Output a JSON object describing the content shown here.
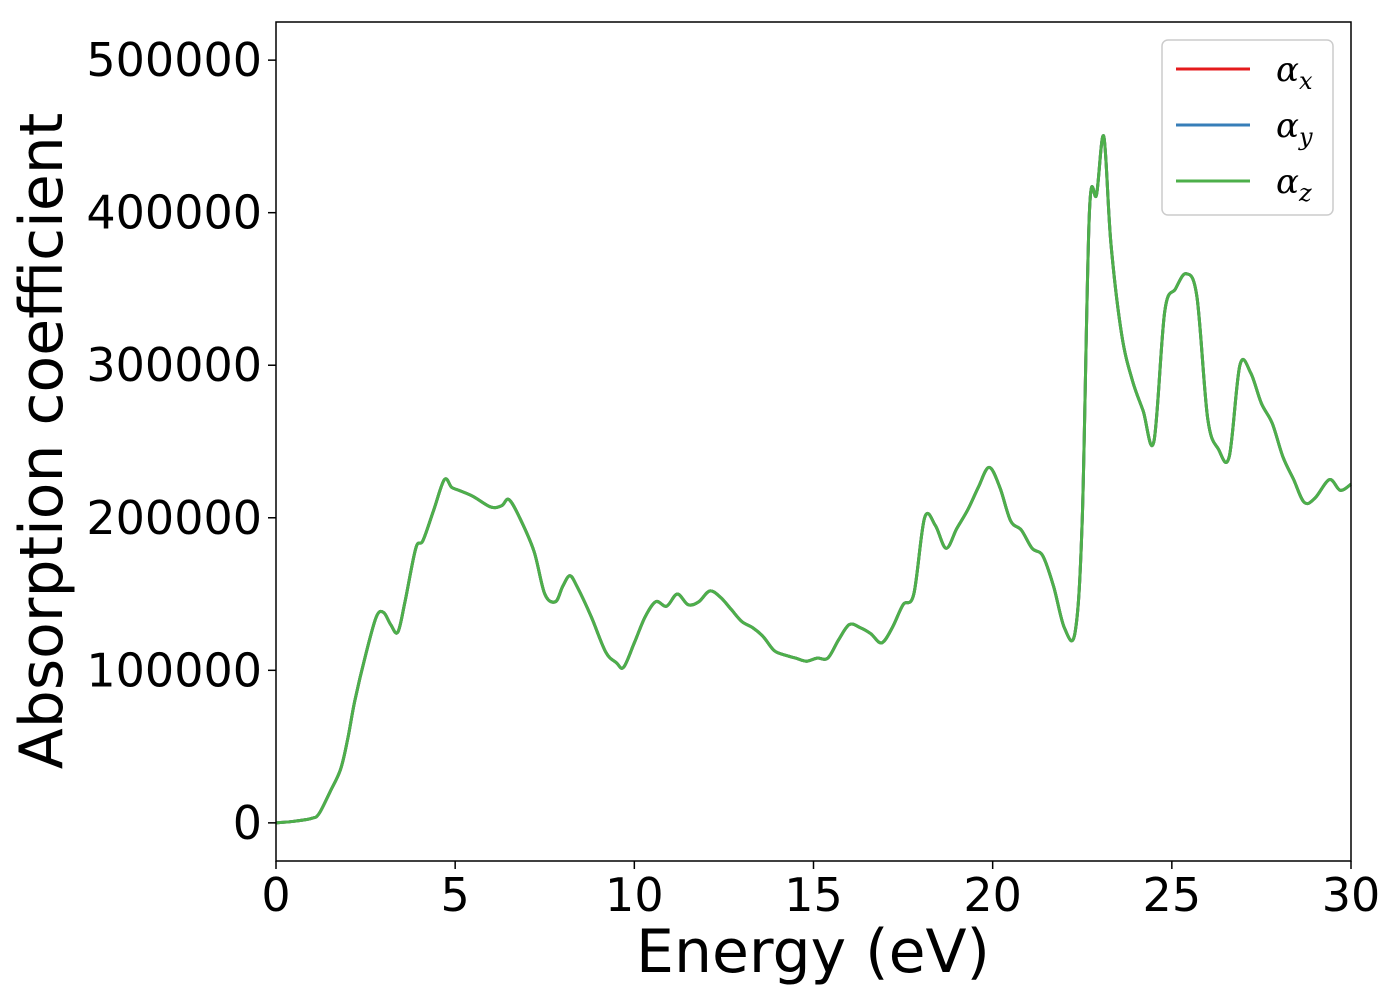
{
  "chart_data": {
    "type": "line",
    "title": "",
    "xlabel": "Energy (eV)",
    "ylabel": "Absorption coefficient",
    "xlim": [
      0,
      30
    ],
    "ylim": [
      -25000,
      525000
    ],
    "xticks": [
      0,
      5,
      10,
      15,
      20,
      25,
      30
    ],
    "yticks": [
      0,
      100000,
      200000,
      300000,
      400000,
      500000
    ],
    "grid": false,
    "legend_position": "top-right",
    "legend": [
      {
        "symbol": "α",
        "subscript": "x",
        "color": "#e41a1c"
      },
      {
        "symbol": "α",
        "subscript": "y",
        "color": "#377eb8"
      },
      {
        "symbol": "α",
        "subscript": "z",
        "color": "#4daf4a"
      }
    ],
    "x": [
      0,
      0.5,
      1.0,
      1.2,
      1.5,
      1.8,
      2.0,
      2.2,
      2.5,
      2.8,
      3.0,
      3.2,
      3.4,
      3.6,
      3.9,
      4.1,
      4.4,
      4.7,
      4.9,
      5.1,
      5.5,
      6.0,
      6.3,
      6.5,
      6.8,
      7.2,
      7.5,
      7.8,
      8.0,
      8.2,
      8.4,
      8.8,
      9.2,
      9.5,
      9.7,
      10.0,
      10.3,
      10.6,
      10.9,
      11.2,
      11.5,
      11.8,
      12.1,
      12.4,
      12.7,
      13.0,
      13.3,
      13.6,
      13.9,
      14.2,
      14.5,
      14.8,
      15.1,
      15.4,
      15.7,
      16.0,
      16.3,
      16.6,
      16.9,
      17.2,
      17.5,
      17.8,
      18.1,
      18.4,
      18.7,
      19.0,
      19.3,
      19.6,
      19.9,
      20.2,
      20.5,
      20.8,
      21.1,
      21.4,
      21.7,
      22.0,
      22.3,
      22.5,
      22.7,
      22.9,
      23.1,
      23.3,
      23.6,
      23.9,
      24.2,
      24.5,
      24.8,
      25.1,
      25.4,
      25.7,
      26.0,
      26.3,
      26.6,
      26.9,
      27.2,
      27.5,
      27.8,
      28.1,
      28.4,
      28.7,
      29.0,
      29.4,
      29.7,
      30.0
    ],
    "series": [
      {
        "color": "#e41a1c",
        "values": [
          0,
          1000,
          3000,
          6000,
          20000,
          35000,
          55000,
          80000,
          110000,
          135000,
          138000,
          130000,
          125000,
          145000,
          180000,
          185000,
          205000,
          225000,
          220000,
          218000,
          214000,
          207000,
          208000,
          212000,
          200000,
          178000,
          150000,
          145000,
          155000,
          162000,
          155000,
          135000,
          112000,
          105000,
          102000,
          118000,
          135000,
          145000,
          142000,
          150000,
          143000,
          145000,
          152000,
          148000,
          140000,
          132000,
          128000,
          122000,
          113000,
          110000,
          108000,
          106000,
          108000,
          108000,
          120000,
          130000,
          128000,
          124000,
          118000,
          128000,
          143000,
          150000,
          200000,
          195000,
          180000,
          193000,
          205000,
          220000,
          233000,
          220000,
          198000,
          192000,
          180000,
          175000,
          155000,
          128000,
          125000,
          200000,
          400000,
          412000,
          450000,
          380000,
          320000,
          290000,
          270000,
          250000,
          335000,
          350000,
          360000,
          345000,
          265000,
          245000,
          240000,
          300000,
          295000,
          275000,
          262000,
          240000,
          225000,
          210000,
          213000,
          225000,
          218000,
          222000
        ]
      },
      {
        "color": "#377eb8",
        "values": [
          0,
          1000,
          3000,
          6000,
          20000,
          35000,
          55000,
          80000,
          110000,
          135000,
          138000,
          130000,
          125000,
          145000,
          180000,
          185000,
          205000,
          225000,
          220000,
          218000,
          214000,
          207000,
          208000,
          212000,
          200000,
          178000,
          150000,
          145000,
          155000,
          162000,
          155000,
          135000,
          112000,
          105000,
          102000,
          118000,
          135000,
          145000,
          142000,
          150000,
          143000,
          145000,
          152000,
          148000,
          140000,
          132000,
          128000,
          122000,
          113000,
          110000,
          108000,
          106000,
          108000,
          108000,
          120000,
          130000,
          128000,
          124000,
          118000,
          128000,
          143000,
          150000,
          200000,
          195000,
          180000,
          193000,
          205000,
          220000,
          233000,
          220000,
          198000,
          192000,
          180000,
          175000,
          155000,
          128000,
          125000,
          200000,
          400000,
          412000,
          450000,
          380000,
          320000,
          290000,
          270000,
          250000,
          335000,
          350000,
          360000,
          345000,
          265000,
          245000,
          240000,
          300000,
          295000,
          275000,
          262000,
          240000,
          225000,
          210000,
          213000,
          225000,
          218000,
          222000
        ]
      },
      {
        "color": "#4daf4a",
        "values": [
          0,
          1000,
          3000,
          6000,
          20000,
          35000,
          55000,
          80000,
          110000,
          135000,
          138000,
          130000,
          125000,
          145000,
          180000,
          185000,
          205000,
          225000,
          220000,
          218000,
          214000,
          207000,
          208000,
          212000,
          200000,
          178000,
          150000,
          145000,
          155000,
          162000,
          155000,
          135000,
          112000,
          105000,
          102000,
          118000,
          135000,
          145000,
          142000,
          150000,
          143000,
          145000,
          152000,
          148000,
          140000,
          132000,
          128000,
          122000,
          113000,
          110000,
          108000,
          106000,
          108000,
          108000,
          120000,
          130000,
          128000,
          124000,
          118000,
          128000,
          143000,
          150000,
          200000,
          195000,
          180000,
          193000,
          205000,
          220000,
          233000,
          220000,
          198000,
          192000,
          180000,
          175000,
          155000,
          128000,
          125000,
          200000,
          400000,
          412000,
          450000,
          380000,
          320000,
          290000,
          270000,
          250000,
          335000,
          350000,
          360000,
          345000,
          265000,
          245000,
          240000,
          300000,
          295000,
          275000,
          262000,
          240000,
          225000,
          210000,
          213000,
          225000,
          218000,
          222000
        ]
      }
    ]
  }
}
